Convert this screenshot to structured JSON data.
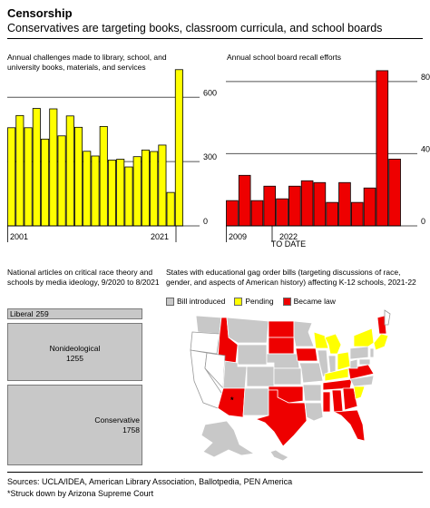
{
  "header": {
    "title": "Censorship",
    "subtitle": "Conservatives are targeting books, classroom curricula, and school boards"
  },
  "chart_data": [
    {
      "type": "bar",
      "title": "Annual challenges made to library, school, and university books, materials, and services",
      "x": [
        2001,
        2002,
        2003,
        2004,
        2005,
        2006,
        2007,
        2008,
        2009,
        2010,
        2011,
        2012,
        2013,
        2014,
        2015,
        2016,
        2017,
        2018,
        2019,
        2020,
        2021
      ],
      "values": [
        458,
        515,
        458,
        548,
        405,
        546,
        420,
        513,
        460,
        348,
        326,
        464,
        307,
        311,
        275,
        323,
        354,
        347,
        377,
        156,
        729
      ],
      "ylim": [
        0,
        800
      ],
      "yticks": [
        "600",
        "300",
        "0"
      ],
      "xtick_labels": [
        "2001",
        "2021"
      ],
      "color": "#ffff00"
    },
    {
      "type": "bar",
      "title": "Annual school board recall efforts",
      "x": [
        2009,
        2010,
        2011,
        2012,
        2013,
        2014,
        2015,
        2016,
        2017,
        2018,
        2019,
        2020,
        2021,
        2022
      ],
      "values": [
        14,
        28,
        14,
        22,
        15,
        22,
        25,
        24,
        13,
        24,
        13,
        21,
        86,
        37
      ],
      "ylim": [
        0,
        95
      ],
      "yticks": [
        "80",
        "40",
        "0"
      ],
      "xtick_labels": [
        "2009",
        "2022"
      ],
      "note": "TO DATE",
      "color": "#ee0000"
    },
    {
      "type": "table",
      "title": "National articles on critical race theory and schools by media ideology, 9/2020 to 8/2021",
      "categories": [
        "Liberal",
        "Nonideological",
        "Conservative"
      ],
      "values": [
        259,
        1255,
        1758
      ]
    }
  ],
  "map": {
    "title": "States with educational gag order bills (targeting discussions of race, gender, and aspects of American history) affecting K-12 schools, 2021-22",
    "legend": [
      {
        "label": "Bill introduced",
        "color": "#c8c8c8"
      },
      {
        "label": "Pending",
        "color": "#ffff00"
      },
      {
        "label": "Became law",
        "color": "#ee0000"
      }
    ]
  },
  "sources": {
    "line1": "Sources: UCLA/IDEA, American Library Association, Ballotpedia, PEN America",
    "line2": "*Struck down by Arizona Supreme Court"
  }
}
